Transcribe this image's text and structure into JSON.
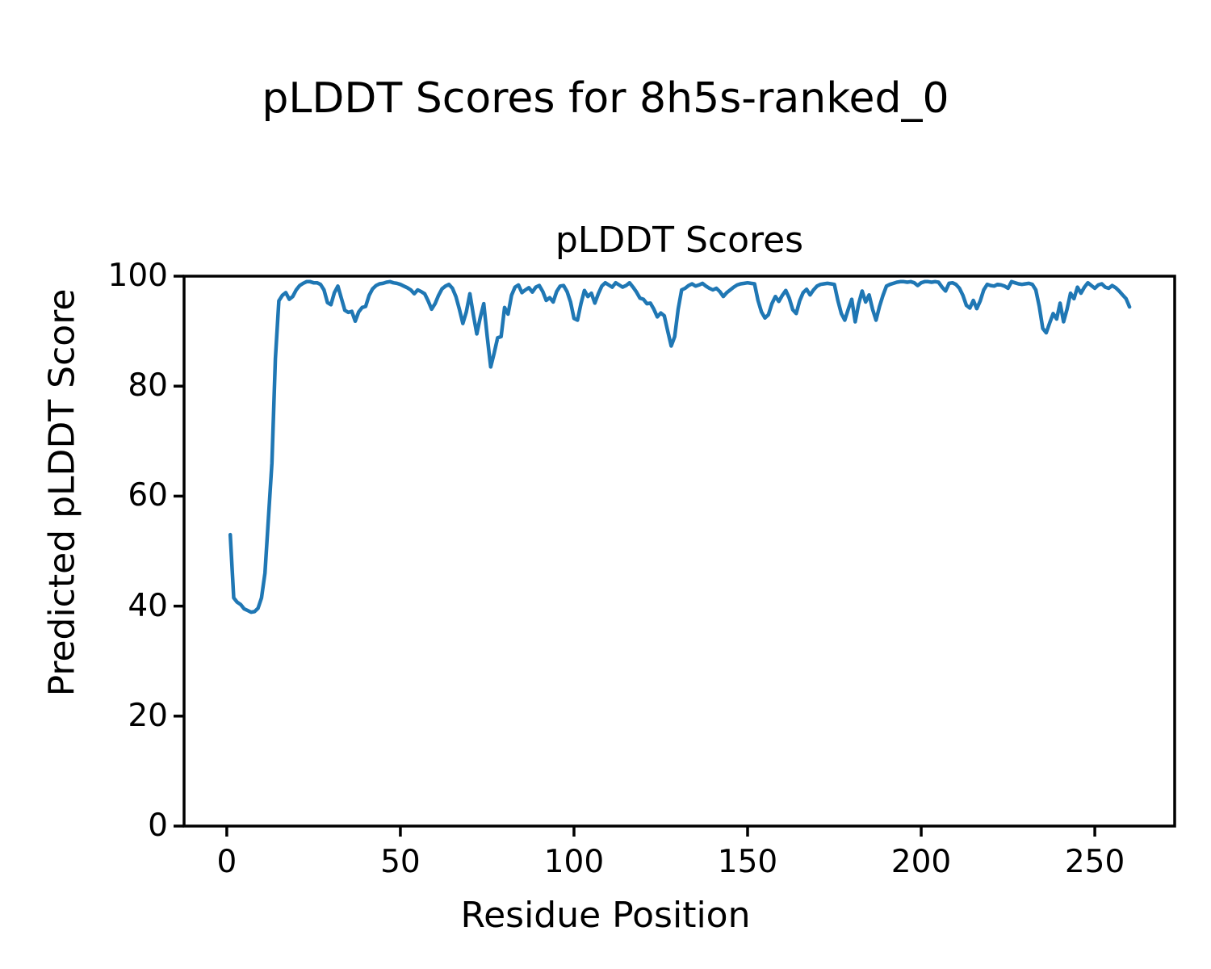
{
  "figure": {
    "suptitle": "pLDDT Scores for 8h5s-ranked_0",
    "background_color": "#ffffff",
    "text_color": "#000000"
  },
  "chart_data": {
    "type": "line",
    "title": "pLDDT Scores",
    "xlabel": "Residue Position",
    "ylabel": "Predicted pLDDT Score",
    "line_color": "#1f77b4",
    "line_width": 4.5,
    "grid": false,
    "legend": null,
    "xlim": [
      -12.3,
      273.0
    ],
    "ylim": [
      0,
      100
    ],
    "xticks": [
      0,
      50,
      100,
      150,
      200,
      250
    ],
    "yticks": [
      0,
      20,
      40,
      60,
      80,
      100
    ],
    "x_residue_first": 1,
    "x_residue_step": 1,
    "x_residue_last": 260,
    "values": [
      53.0,
      41.5,
      40.7,
      40.3,
      39.5,
      39.2,
      38.9,
      39.0,
      39.6,
      41.5,
      46.0,
      56.0,
      66.0,
      85.0,
      95.5,
      96.5,
      97.0,
      95.8,
      96.3,
      97.5,
      98.3,
      98.7,
      99.0,
      99.0,
      98.8,
      98.8,
      98.5,
      97.5,
      95.2,
      94.8,
      97.0,
      98.2,
      96.0,
      93.8,
      93.4,
      93.6,
      91.8,
      93.5,
      94.3,
      94.5,
      96.5,
      97.7,
      98.3,
      98.6,
      98.7,
      98.9,
      99.0,
      98.8,
      98.7,
      98.5,
      98.2,
      97.9,
      97.5,
      96.8,
      97.5,
      97.2,
      96.8,
      95.5,
      94.0,
      95.0,
      96.5,
      97.7,
      98.2,
      98.5,
      97.8,
      96.3,
      94.0,
      91.4,
      93.5,
      96.8,
      93.0,
      89.5,
      92.5,
      95.0,
      89.0,
      83.5,
      86.0,
      88.8,
      89.0,
      94.3,
      93.1,
      96.5,
      98.0,
      98.4,
      97.0,
      97.5,
      97.9,
      97.1,
      98.0,
      98.3,
      97.2,
      95.6,
      96.1,
      95.3,
      97.2,
      98.2,
      98.3,
      97.2,
      95.3,
      92.3,
      92.0,
      95.0,
      97.4,
      96.3,
      96.9,
      95.1,
      96.8,
      98.2,
      98.8,
      98.4,
      98.0,
      98.8,
      98.4,
      98.0,
      98.3,
      98.8,
      98.0,
      97.1,
      96.0,
      95.8,
      95.0,
      95.1,
      94.0,
      92.6,
      93.3,
      92.8,
      90.0,
      87.3,
      89.0,
      94.0,
      97.5,
      97.8,
      98.3,
      98.6,
      98.2,
      98.4,
      98.7,
      98.2,
      97.8,
      97.5,
      97.8,
      97.2,
      96.3,
      97.0,
      97.5,
      98.0,
      98.4,
      98.6,
      98.7,
      98.8,
      98.7,
      98.6,
      95.6,
      93.5,
      92.4,
      93.0,
      95.0,
      96.3,
      95.4,
      96.5,
      97.4,
      96.0,
      93.9,
      93.2,
      95.5,
      97.0,
      97.6,
      96.6,
      97.5,
      98.2,
      98.5,
      98.6,
      98.7,
      98.6,
      98.5,
      95.6,
      93.2,
      92.0,
      94.0,
      95.8,
      91.7,
      95.0,
      97.3,
      95.3,
      96.6,
      94.0,
      92.0,
      94.5,
      96.5,
      98.2,
      98.5,
      98.7,
      98.9,
      99.0,
      99.0,
      98.9,
      99.0,
      98.8,
      98.3,
      98.8,
      99.0,
      99.0,
      98.9,
      99.0,
      98.9,
      98.0,
      97.3,
      98.7,
      98.8,
      98.5,
      97.8,
      96.5,
      94.7,
      94.2,
      95.6,
      94.1,
      95.5,
      97.5,
      98.5,
      98.3,
      98.2,
      98.5,
      98.4,
      98.2,
      97.8,
      99.0,
      98.8,
      98.6,
      98.5,
      98.6,
      98.7,
      98.5,
      97.5,
      94.5,
      90.5,
      89.7,
      91.5,
      93.2,
      92.2,
      95.1,
      91.7,
      94.0,
      96.9,
      95.9,
      98.0,
      96.9,
      98.0,
      98.8,
      98.3,
      97.8,
      98.4,
      98.6,
      98.0,
      97.8,
      98.3,
      97.9,
      97.3,
      96.6,
      95.9,
      94.4
    ]
  }
}
